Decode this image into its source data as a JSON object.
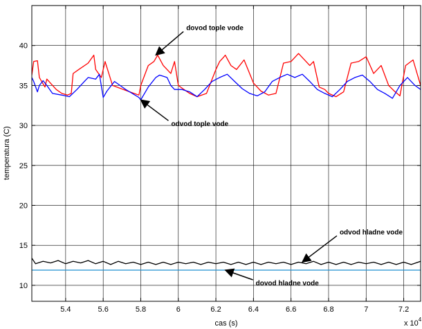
{
  "chart_data": {
    "type": "line",
    "title": "",
    "xlabel": "cas (s)",
    "ylabel": "temperatura (C)",
    "x_exponent_label": "x 10",
    "x_exponent_power": "4",
    "xlim": [
      5.22,
      7.29
    ],
    "ylim": [
      8,
      45
    ],
    "x_ticks": [
      5.4,
      5.6,
      5.8,
      6.0,
      6.2,
      6.4,
      6.6,
      6.8,
      7.0,
      7.2
    ],
    "x_tick_labels": [
      "5.4",
      "5.6",
      "5.8",
      "6",
      "6.2",
      "6.4",
      "6.6",
      "6.8",
      "7",
      "7.2"
    ],
    "y_ticks": [
      10,
      15,
      20,
      25,
      30,
      35,
      40
    ],
    "y_tick_labels": [
      "10",
      "15",
      "20",
      "25",
      "30",
      "35",
      "40"
    ],
    "grid": true,
    "series": [
      {
        "name": "dovod tople vode",
        "color": "#ff0000",
        "x": [
          5.22,
          5.23,
          5.25,
          5.26,
          5.29,
          5.3,
          5.35,
          5.38,
          5.41,
          5.43,
          5.44,
          5.47,
          5.52,
          5.55,
          5.56,
          5.59,
          5.61,
          5.65,
          5.73,
          5.79,
          5.8,
          5.84,
          5.87,
          5.89,
          5.92,
          5.96,
          5.98,
          6.0,
          6.03,
          6.06,
          6.1,
          6.15,
          6.2,
          6.22,
          6.24,
          6.25,
          6.28,
          6.31,
          6.35,
          6.4,
          6.44,
          6.48,
          6.52,
          6.56,
          6.6,
          6.64,
          6.7,
          6.72,
          6.75,
          6.78,
          6.8,
          6.84,
          6.88,
          6.92,
          6.96,
          7.0,
          7.04,
          7.08,
          7.12,
          7.15,
          7.18,
          7.21,
          7.25,
          7.29
        ],
        "y": [
          36.3,
          38.0,
          38.1,
          36.0,
          34.8,
          35.8,
          34.5,
          34.0,
          33.8,
          34.0,
          36.5,
          37.0,
          37.8,
          38.8,
          37.0,
          36.0,
          38.0,
          35.0,
          34.3,
          33.8,
          35.0,
          37.5,
          38.0,
          38.8,
          37.5,
          36.5,
          38.0,
          35.0,
          34.5,
          34.0,
          33.6,
          34.0,
          37.0,
          38.0,
          38.5,
          38.8,
          37.5,
          37.0,
          38.2,
          35.3,
          34.3,
          33.8,
          34.0,
          37.8,
          38.0,
          39.0,
          37.5,
          38.0,
          34.8,
          34.5,
          34.0,
          33.6,
          34.2,
          37.8,
          38.0,
          38.6,
          36.5,
          37.5,
          35.0,
          34.3,
          33.7,
          37.5,
          38.2,
          35.0
        ]
      },
      {
        "name": "odvod tople vode",
        "color": "#0000ff",
        "x": [
          5.22,
          5.23,
          5.25,
          5.26,
          5.28,
          5.3,
          5.33,
          5.38,
          5.42,
          5.46,
          5.5,
          5.52,
          5.56,
          5.58,
          5.6,
          5.62,
          5.66,
          5.72,
          5.79,
          5.8,
          5.84,
          5.88,
          5.9,
          5.94,
          5.96,
          5.98,
          6.02,
          6.06,
          6.1,
          6.14,
          6.18,
          6.22,
          6.26,
          6.3,
          6.34,
          6.38,
          6.42,
          6.46,
          6.5,
          6.54,
          6.58,
          6.62,
          6.66,
          6.7,
          6.74,
          6.78,
          6.82,
          6.86,
          6.9,
          6.94,
          6.98,
          7.02,
          7.06,
          7.1,
          7.14,
          7.18,
          7.22,
          7.26,
          7.29
        ],
        "y": [
          36.0,
          35.5,
          34.2,
          35.0,
          35.6,
          35.0,
          34.0,
          33.8,
          33.6,
          34.5,
          35.5,
          36.0,
          35.8,
          36.4,
          33.5,
          34.3,
          35.5,
          34.5,
          33.5,
          33.2,
          34.8,
          36.0,
          36.3,
          36.0,
          35.0,
          34.5,
          34.5,
          34.2,
          33.6,
          34.5,
          35.5,
          36.0,
          36.4,
          35.5,
          34.6,
          34.0,
          33.7,
          34.2,
          35.5,
          36.0,
          36.4,
          36.0,
          36.4,
          35.5,
          34.5,
          34.0,
          33.6,
          34.5,
          35.5,
          36.0,
          36.3,
          35.5,
          34.5,
          34.0,
          33.4,
          35.0,
          36.0,
          35.0,
          34.5
        ]
      },
      {
        "name": "odvod hladne vode",
        "color": "#000000",
        "x": [
          5.22,
          5.24,
          5.28,
          5.32,
          5.36,
          5.4,
          5.44,
          5.48,
          5.52,
          5.56,
          5.6,
          5.64,
          5.68,
          5.72,
          5.76,
          5.8,
          5.84,
          5.88,
          5.92,
          5.96,
          6.0,
          6.04,
          6.08,
          6.12,
          6.16,
          6.2,
          6.24,
          6.28,
          6.32,
          6.36,
          6.4,
          6.44,
          6.48,
          6.52,
          6.56,
          6.6,
          6.64,
          6.68,
          6.72,
          6.76,
          6.8,
          6.84,
          6.88,
          6.92,
          6.96,
          7.0,
          7.04,
          7.08,
          7.12,
          7.16,
          7.2,
          7.24,
          7.29
        ],
        "y": [
          13.4,
          12.7,
          13.0,
          12.8,
          13.1,
          12.7,
          13.0,
          12.8,
          13.1,
          12.7,
          13.0,
          12.6,
          13.0,
          12.7,
          12.9,
          12.6,
          12.9,
          12.6,
          12.9,
          12.6,
          12.9,
          12.7,
          12.9,
          12.6,
          12.9,
          12.7,
          12.9,
          12.6,
          12.9,
          12.6,
          12.9,
          12.6,
          12.9,
          12.7,
          12.9,
          12.6,
          12.9,
          12.7,
          13.0,
          12.6,
          12.9,
          12.6,
          12.9,
          12.6,
          12.9,
          12.7,
          12.9,
          12.6,
          12.9,
          12.6,
          12.9,
          12.6,
          13.0
        ]
      },
      {
        "name": "dovod hladne vode",
        "color": "#1f8fd0",
        "x": [
          5.22,
          5.3,
          5.4,
          5.5,
          5.6,
          5.7,
          5.8,
          5.9,
          6.0,
          6.1,
          6.2,
          6.3,
          6.4,
          6.5,
          6.6,
          6.7,
          6.8,
          6.9,
          7.0,
          7.1,
          7.2,
          7.29
        ],
        "y": [
          11.9,
          11.9,
          11.9,
          11.9,
          11.9,
          11.9,
          11.9,
          11.9,
          11.9,
          11.9,
          11.9,
          11.9,
          11.9,
          11.9,
          11.9,
          11.9,
          11.9,
          11.9,
          11.9,
          11.9,
          11.9,
          11.9
        ]
      }
    ],
    "annotations": [
      {
        "text": "dovod tople vode",
        "arrow_to": [
          5.88,
          38.8
        ]
      },
      {
        "text": "odvod tople vode",
        "arrow_to": [
          5.8,
          33.2
        ]
      },
      {
        "text": "odvod hladne vode",
        "arrow_to": [
          6.66,
          12.9
        ]
      },
      {
        "text": "dovod hladne vode",
        "arrow_to": [
          6.25,
          11.9
        ]
      }
    ]
  }
}
